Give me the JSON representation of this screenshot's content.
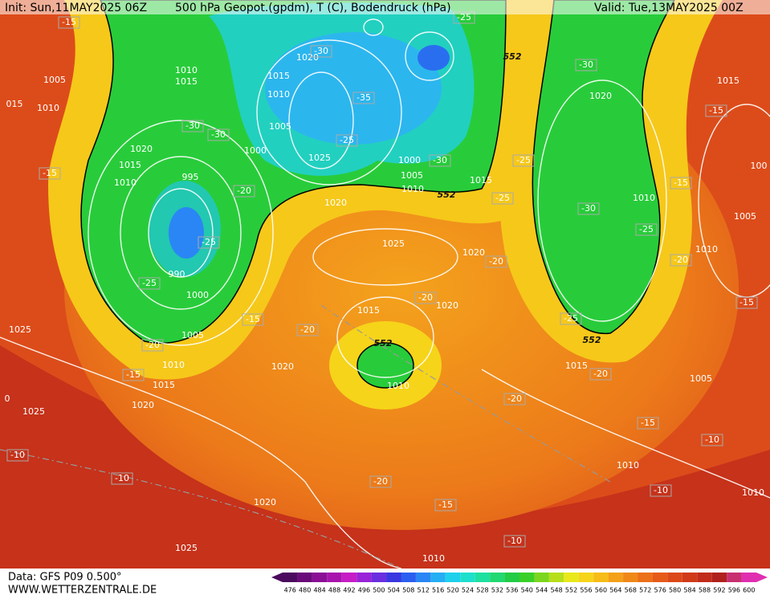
{
  "header": {
    "init": "Init: Sun,11MAY2025 06Z",
    "title": "500 hPa Geopot.(gpdm), T (C), Bodendruck (hPa)",
    "valid": "Valid: Tue,13MAY2025 00Z"
  },
  "footer": {
    "data": "Data: GFS P09 0.500°",
    "site": "WWW.WETTERZENTRALE.DE"
  },
  "scale": {
    "labels": [
      476,
      480,
      484,
      488,
      492,
      496,
      500,
      504,
      508,
      512,
      516,
      520,
      524,
      528,
      532,
      536,
      540,
      544,
      548,
      552,
      556,
      560,
      564,
      568,
      572,
      576,
      580,
      584,
      588,
      592,
      596,
      600
    ],
    "colors": [
      "#4b0a5e",
      "#6a0a7a",
      "#8a0f95",
      "#a814ad",
      "#c61cc6",
      "#9a22d8",
      "#6a2ee0",
      "#3a36e0",
      "#2b5ef0",
      "#2a86f4",
      "#24aef4",
      "#1ed0ec",
      "#1ee0cc",
      "#1fe0a0",
      "#22d870",
      "#22cc44",
      "#3ad028",
      "#7ad61e",
      "#b6de1a",
      "#e8e81a",
      "#f6d41a",
      "#f6bc18",
      "#f4a018",
      "#f08818",
      "#ec7018",
      "#e65a18",
      "#dc4818",
      "#d03a18",
      "#c22c1a",
      "#b0201c",
      "#c83070",
      "#e02eb0"
    ]
  },
  "map_labels": {
    "isobars": [
      1005,
      1010,
      "015",
      1010,
      1015,
      1020,
      1015,
      1010,
      1005,
      1000,
      1025,
      1020,
      1015,
      1010,
      995,
      990,
      1000,
      1005,
      1010,
      1015,
      1020,
      1025,
      1025,
      1020,
      1025,
      1020,
      1015,
      1010,
      1020,
      1020,
      1015,
      1000,
      1005,
      1010,
      1020,
      1015,
      1010,
      1005,
      1010,
      1015,
      1005,
      1010,
      1010,
      1020,
      1025,
      1010
    ],
    "temperatures": [
      -15,
      -30,
      -30,
      -35,
      -25,
      -30,
      -25,
      -30,
      -20,
      -25,
      -25,
      -20,
      -15,
      -15,
      -15,
      -20,
      -20,
      -20,
      -25,
      -25,
      -30,
      -30,
      -25,
      -15,
      -15,
      -20,
      -15,
      -25,
      -20,
      -20,
      -15,
      -10,
      -10,
      -10,
      -10,
      -20,
      -15,
      -10
    ],
    "heights": [
      552,
      552,
      552,
      552
    ],
    "edge": [
      "0",
      "100"
    ]
  }
}
